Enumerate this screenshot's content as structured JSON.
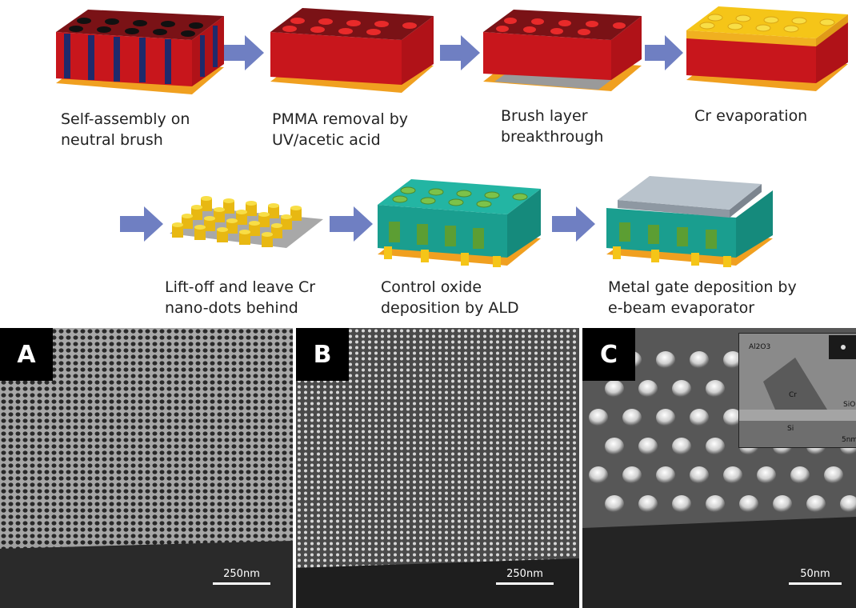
{
  "steps": [
    {
      "caption": "Self-assembly on\nneutral brush"
    },
    {
      "caption": "PMMA removal by\nUV/acetic acid"
    },
    {
      "caption": "Brush layer\nbreakthrough"
    },
    {
      "caption": "Cr evaporation"
    },
    {
      "caption": "Lift-off and leave Cr\nnano-dots behind"
    },
    {
      "caption": "Control oxide\ndeposition by ALD"
    },
    {
      "caption": "Metal gate deposition by\ne-beam evaporator"
    }
  ],
  "panels": [
    {
      "label": "A",
      "scale": "250nm"
    },
    {
      "label": "B",
      "scale": "250nm"
    },
    {
      "label": "C",
      "scale": "50nm",
      "inset": {
        "oxide": "Al2O3",
        "metal": "Cr",
        "sio": "SiO",
        "si": "Si",
        "scale": "5nm"
      }
    }
  ],
  "colors": {
    "arrow": "#6f7fc2",
    "pmma_top": "#7a1216",
    "pmma_side": "#c8161c",
    "ps_blue": "#1f2a6b",
    "cr_gold": "#f5c518",
    "cr_orange": "#f0a020",
    "oxide_teal": "#1a9e8f",
    "dot_green": "#7cc24a",
    "gate_grey": "#b9c3cc"
  }
}
